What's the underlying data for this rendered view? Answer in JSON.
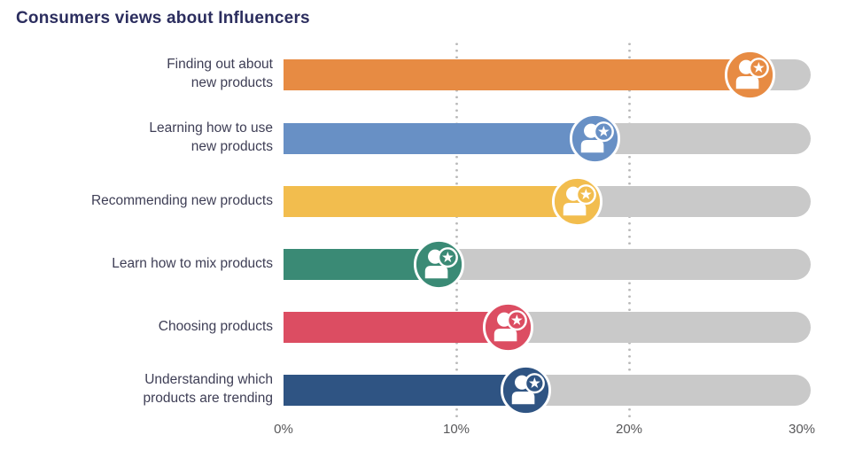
{
  "chart_data": {
    "type": "bar",
    "orientation": "horizontal",
    "title": "Consumers views about Influencers",
    "unit": "%",
    "xlim": [
      0,
      30
    ],
    "x_tick_labels": [
      "0%",
      "10%",
      "20%",
      "30%"
    ],
    "x_tick_values": [
      0,
      10,
      20,
      30
    ],
    "gridlines_at": [
      10,
      20
    ],
    "grid_style": "dotted-vertical",
    "legend": "none",
    "track_color": "#C9C9C9",
    "marker_icon": "influencer-person-with-star-badge-icon",
    "categories": [
      "Finding out about new products",
      "Learning how to use new products",
      "Recommending new products",
      "Learn how to mix products",
      "Choosing products",
      "Understanding which products are trending"
    ],
    "values": [
      27,
      18,
      17,
      9,
      13,
      14
    ],
    "rows": [
      {
        "label": "Finding out about\nnew products",
        "value": 27,
        "color": "#E78B43"
      },
      {
        "label": "Learning how to use\nnew products",
        "value": 18,
        "color": "#6890C5"
      },
      {
        "label": "Recommending new products",
        "value": 17,
        "color": "#F2BD4E"
      },
      {
        "label": "Learn how to mix products",
        "value": 9,
        "color": "#3A8A75"
      },
      {
        "label": "Choosing products",
        "value": 13,
        "color": "#DC4D62"
      },
      {
        "label": "Understanding which\nproducts are trending",
        "value": 14,
        "color": "#2F5483"
      }
    ],
    "colors": {
      "title_text": "#2B2D5E",
      "label_text": "#3E3E55",
      "axis_text": "#58585A",
      "gridline": "#B9B9B9",
      "marker_ring": "#FFFFFF"
    }
  }
}
